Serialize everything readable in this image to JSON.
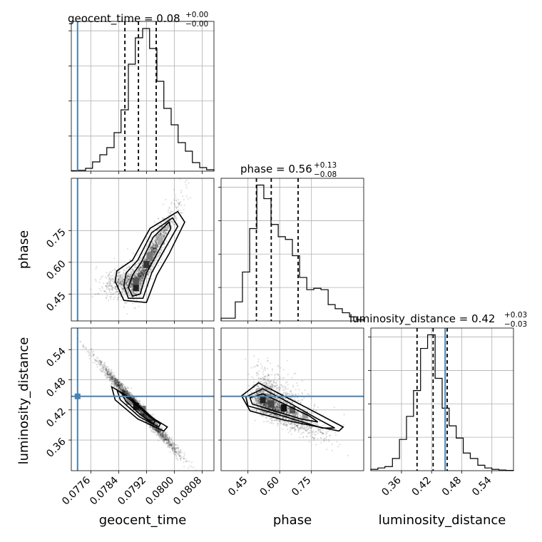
{
  "chart_data": {
    "type": "corner",
    "parameters": [
      "geocent_time",
      "phase",
      "luminosity_distance"
    ],
    "ranges": {
      "geocent_time": [
        0.07704,
        0.08114
      ],
      "phase": [
        0.323,
        0.997
      ],
      "luminosity_distance": [
        0.299,
        0.583
      ]
    },
    "truths": {
      "geocent_time": 0.07722,
      "luminosity_distance": 0.447
    },
    "titles": [
      {
        "param": "geocent_time",
        "prefix": "geocent_time = ",
        "value": "0.08",
        "plus": "+0.00",
        "minus": "−0.00"
      },
      {
        "param": "phase",
        "prefix": "phase = ",
        "value": "0.56",
        "plus": "+0.13",
        "minus": "−0.08"
      },
      {
        "param": "luminosity_distance",
        "prefix": "luminosity_distance = ",
        "value": "0.42",
        "plus": "+0.03",
        "minus": "−0.03"
      }
    ],
    "axis_labels": {
      "geocent_time": "geocent_time",
      "phase": "phase",
      "luminosity_distance": "luminosity_distance"
    },
    "ticks": {
      "geocent_time": [
        "0.0776",
        "0.0784",
        "0.0792",
        "0.0800",
        "0.0808"
      ],
      "phase": [
        "0.45",
        "0.60",
        "0.75"
      ],
      "luminosity_distance": [
        "0.36",
        "0.42",
        "0.48",
        "0.54"
      ]
    },
    "histograms": {
      "geocent_time": {
        "quantiles": [
          0.07858,
          0.07897,
          0.07948
        ],
        "edges": [
          0.07704,
          0.07724,
          0.07745,
          0.07765,
          0.07786,
          0.07806,
          0.07827,
          0.07847,
          0.07868,
          0.07888,
          0.07909,
          0.07929,
          0.0795,
          0.0797,
          0.07991,
          0.08011,
          0.08032,
          0.08052,
          0.08073,
          0.08093,
          0.08114
        ],
        "counts": [
          0.3,
          0.6,
          2,
          6.5,
          11.5,
          16.5,
          27,
          43,
          75,
          93.5,
          100,
          86,
          63,
          44,
          32.5,
          20,
          14,
          6,
          2.5,
          1
        ]
      },
      "phase": {
        "quantiles": [
          0.49,
          0.56,
          0.687
        ],
        "edges": [
          0.323,
          0.357,
          0.39,
          0.424,
          0.458,
          0.492,
          0.525,
          0.559,
          0.593,
          0.627,
          0.66,
          0.694,
          0.728,
          0.761,
          0.795,
          0.829,
          0.862,
          0.896,
          0.93,
          0.963,
          0.997
        ],
        "counts": [
          2,
          2,
          14,
          36,
          68,
          100,
          90,
          71,
          62,
          60,
          48,
          32,
          23,
          24,
          23,
          12,
          9,
          6,
          3,
          1
        ]
      },
      "luminosity_distance": {
        "quantiles": [
          0.391,
          0.423,
          0.451
        ],
        "edges": [
          0.299,
          0.313,
          0.327,
          0.342,
          0.356,
          0.37,
          0.384,
          0.398,
          0.412,
          0.427,
          0.441,
          0.455,
          0.469,
          0.483,
          0.497,
          0.512,
          0.526,
          0.54,
          0.554,
          0.568,
          0.583
        ],
        "counts": [
          1,
          2,
          3,
          9,
          23,
          40,
          59,
          90,
          100,
          68,
          46,
          33,
          24,
          13,
          9,
          4,
          2,
          1,
          0.5,
          0.2
        ]
      }
    },
    "scatter_2d": [
      {
        "x": "geocent_time",
        "y": "phase",
        "correlation": "positive",
        "contour_levels": 3
      },
      {
        "x": "geocent_time",
        "y": "luminosity_distance",
        "correlation": "negative",
        "contour_levels": 3
      },
      {
        "x": "phase",
        "y": "luminosity_distance",
        "correlation": "negative",
        "contour_levels": 3
      }
    ],
    "grid": true,
    "colors": {
      "truth": "#4682b4",
      "hist": "#000000"
    }
  }
}
